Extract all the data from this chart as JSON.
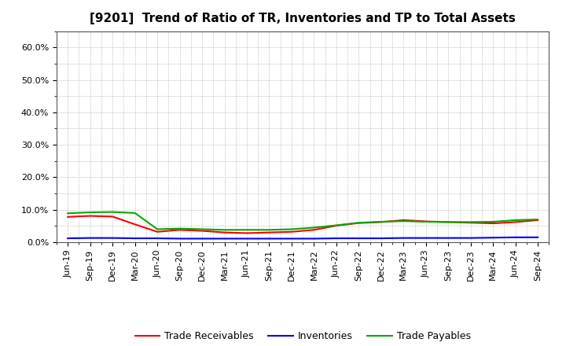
{
  "title": "[9201]  Trend of Ratio of TR, Inventories and TP to Total Assets",
  "x_labels": [
    "Jun-19",
    "Sep-19",
    "Dec-19",
    "Mar-20",
    "Jun-20",
    "Sep-20",
    "Dec-20",
    "Mar-21",
    "Jun-21",
    "Sep-21",
    "Dec-21",
    "Mar-22",
    "Jun-22",
    "Sep-22",
    "Dec-22",
    "Mar-23",
    "Jun-23",
    "Sep-23",
    "Dec-23",
    "Mar-24",
    "Jun-24",
    "Sep-24"
  ],
  "trade_receivables": [
    0.078,
    0.081,
    0.079,
    0.055,
    0.032,
    0.038,
    0.035,
    0.03,
    0.028,
    0.03,
    0.032,
    0.038,
    0.051,
    0.059,
    0.062,
    0.068,
    0.064,
    0.062,
    0.06,
    0.058,
    0.062,
    0.068
  ],
  "inventories": [
    0.012,
    0.013,
    0.013,
    0.012,
    0.012,
    0.011,
    0.011,
    0.011,
    0.011,
    0.011,
    0.011,
    0.011,
    0.012,
    0.012,
    0.012,
    0.013,
    0.013,
    0.013,
    0.013,
    0.014,
    0.015,
    0.015
  ],
  "trade_payables": [
    0.089,
    0.092,
    0.093,
    0.09,
    0.04,
    0.042,
    0.04,
    0.038,
    0.038,
    0.038,
    0.04,
    0.045,
    0.052,
    0.06,
    0.063,
    0.065,
    0.063,
    0.062,
    0.062,
    0.063,
    0.068,
    0.07
  ],
  "tr_color": "#ff0000",
  "inv_color": "#0000ff",
  "tp_color": "#00aa00",
  "ylim": [
    0.0,
    0.65
  ],
  "yticks": [
    0.0,
    0.1,
    0.2,
    0.3,
    0.4,
    0.5,
    0.6
  ],
  "ytick_labels": [
    "0.0%",
    "10.0%",
    "20.0%",
    "30.0%",
    "40.0%",
    "50.0%",
    "60.0%"
  ],
  "bg_color": "#ffffff",
  "plot_bg_color": "#ffffff",
  "grid_color": "#999999",
  "legend_labels": [
    "Trade Receivables",
    "Inventories",
    "Trade Payables"
  ],
  "title_fontsize": 11,
  "tick_fontsize": 8,
  "legend_fontsize": 9
}
